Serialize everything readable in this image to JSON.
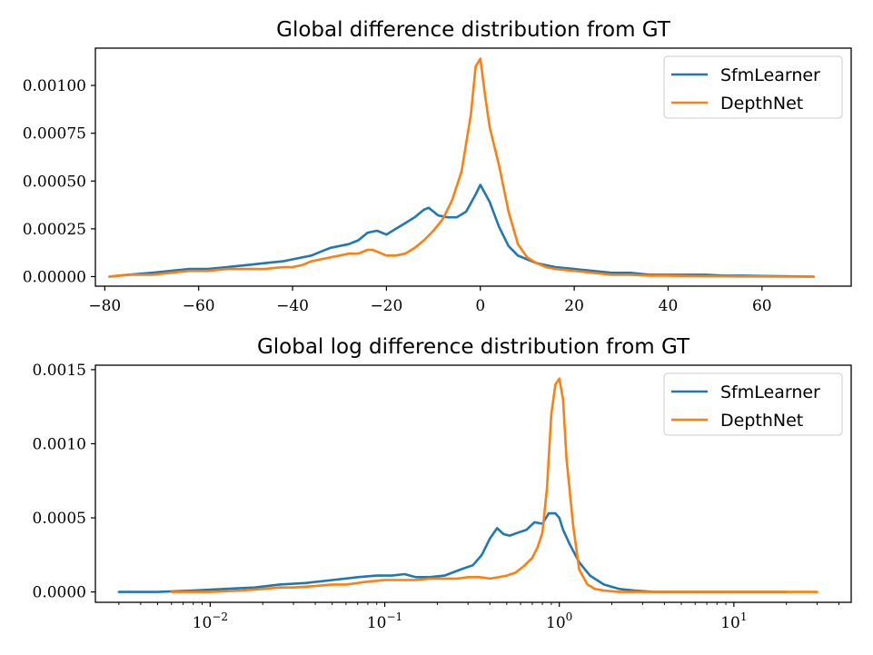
{
  "chart_data": [
    {
      "type": "line",
      "title": "Global difference distribution from GT",
      "xlabel": "",
      "ylabel": "",
      "xscale": "linear",
      "xlim": [
        -82,
        79
      ],
      "ylim": [
        -5e-05,
        0.001195
      ],
      "xticks": [
        -80,
        -60,
        -40,
        -20,
        0,
        20,
        40,
        60
      ],
      "xtick_labels": [
        "−80",
        "−60",
        "−40",
        "−20",
        "0",
        "20",
        "40",
        "60"
      ],
      "yticks": [
        0,
        0.00025,
        0.0005,
        0.00075,
        0.001
      ],
      "ytick_labels": [
        "0.00000",
        "0.00025",
        "0.00050",
        "0.00075",
        "0.00100"
      ],
      "legend": {
        "position": "top-right",
        "entries": [
          "SfmLearner",
          "DepthNet"
        ]
      },
      "series": [
        {
          "name": "SfmLearner",
          "color": "#1f77b4",
          "x": [
            -79,
            -75,
            -70,
            -66,
            -62,
            -58,
            -54,
            -50,
            -46,
            -42,
            -40,
            -38,
            -36,
            -34,
            -32,
            -30,
            -28,
            -26,
            -24,
            -22,
            -20,
            -18,
            -16,
            -14,
            -12,
            -11,
            -10,
            -9,
            -7,
            -5,
            -3,
            -1,
            0,
            2,
            4,
            6,
            8,
            10,
            12,
            14,
            16,
            20,
            24,
            28,
            32,
            36,
            40,
            44,
            48,
            52,
            56,
            60,
            64,
            68,
            71
          ],
          "y": [
            0.0,
            1e-05,
            2e-05,
            3e-05,
            4e-05,
            4e-05,
            5e-05,
            6e-05,
            7e-05,
            8e-05,
            9e-05,
            0.0001,
            0.00011,
            0.00013,
            0.00015,
            0.00016,
            0.00017,
            0.00019,
            0.00023,
            0.00024,
            0.00022,
            0.00025,
            0.00028,
            0.00031,
            0.00035,
            0.00036,
            0.00034,
            0.00032,
            0.00031,
            0.00031,
            0.00034,
            0.00043,
            0.00048,
            0.00039,
            0.00026,
            0.00016,
            0.00011,
            9e-05,
            7e-05,
            6e-05,
            5e-05,
            4e-05,
            3e-05,
            2e-05,
            2e-05,
            1e-05,
            1e-05,
            1e-05,
            1e-05,
            5e-06,
            5e-06,
            3e-06,
            2e-06,
            1e-06,
            0.0
          ]
        },
        {
          "name": "DepthNet",
          "color": "#ff7f0e",
          "x": [
            -79,
            -75,
            -70,
            -66,
            -62,
            -58,
            -54,
            -50,
            -46,
            -42,
            -40,
            -38,
            -36,
            -34,
            -32,
            -30,
            -28,
            -26,
            -24,
            -23,
            -22,
            -20,
            -18,
            -16,
            -14,
            -12,
            -10,
            -8,
            -6,
            -4,
            -2,
            -1,
            0,
            1,
            2,
            4,
            6,
            8,
            10,
            12,
            14,
            16,
            20,
            24,
            28,
            32,
            36,
            40,
            44,
            48,
            52,
            56,
            60,
            64,
            68,
            71
          ],
          "y": [
            0.0,
            1e-05,
            1e-05,
            2e-05,
            3e-05,
            3e-05,
            4e-05,
            4e-05,
            4e-05,
            5e-05,
            5e-05,
            6e-05,
            8e-05,
            9e-05,
            0.0001,
            0.00011,
            0.00012,
            0.00012,
            0.00014,
            0.00014,
            0.00013,
            0.00011,
            0.00011,
            0.00012,
            0.00015,
            0.00019,
            0.00024,
            0.0003,
            0.0004,
            0.00055,
            0.00085,
            0.0011,
            0.00114,
            0.00095,
            0.00078,
            0.00058,
            0.00034,
            0.00017,
            0.0001,
            7e-05,
            5e-05,
            4e-05,
            3e-05,
            2e-05,
            1e-05,
            1e-05,
            5e-06,
            5e-06,
            3e-06,
            2e-06,
            2e-06,
            1e-06,
            1e-06,
            0.0,
            0.0,
            0.0
          ]
        }
      ]
    },
    {
      "type": "line",
      "title": "Global log difference distribution from GT",
      "xlabel": "",
      "ylabel": "",
      "xscale": "log",
      "xlim": [
        0.0022,
        47
      ],
      "ylim": [
        -7e-05,
        0.00153
      ],
      "xticks": [
        0.01,
        0.1,
        1,
        10
      ],
      "xtick_labels": [
        {
          "base": "10",
          "exp": "−2"
        },
        {
          "base": "10",
          "exp": "−1"
        },
        {
          "base": "10",
          "exp": "0"
        },
        {
          "base": "10",
          "exp": "1"
        }
      ],
      "yticks": [
        0,
        0.0005,
        0.001,
        0.0015
      ],
      "ytick_labels": [
        "0.0000",
        "0.0005",
        "0.0010",
        "0.0015"
      ],
      "legend": {
        "position": "top-right",
        "entries": [
          "SfmLearner",
          "DepthNet"
        ]
      },
      "series": [
        {
          "name": "SfmLearner",
          "color": "#1f77b4",
          "x": [
            0.003,
            0.005,
            0.008,
            0.012,
            0.018,
            0.025,
            0.035,
            0.05,
            0.07,
            0.09,
            0.11,
            0.13,
            0.15,
            0.18,
            0.22,
            0.27,
            0.32,
            0.36,
            0.4,
            0.44,
            0.48,
            0.52,
            0.58,
            0.65,
            0.72,
            0.8,
            0.87,
            0.95,
            1.0,
            1.05,
            1.15,
            1.3,
            1.5,
            1.8,
            2.2,
            2.7,
            3.5,
            5,
            8,
            12,
            20
          ],
          "y": [
            0.0,
            0.0,
            1e-05,
            2e-05,
            3e-05,
            5e-05,
            6e-05,
            8e-05,
            0.0001,
            0.00011,
            0.00011,
            0.00012,
            0.0001,
            0.0001,
            0.00011,
            0.00015,
            0.00018,
            0.00025,
            0.00036,
            0.00043,
            0.00039,
            0.00038,
            0.0004,
            0.00042,
            0.00047,
            0.00046,
            0.00053,
            0.00053,
            0.0005,
            0.00042,
            0.00032,
            0.0002,
            0.00011,
            5e-05,
            2e-05,
            1e-05,
            0.0,
            0.0,
            0.0,
            0.0,
            0.0
          ]
        },
        {
          "name": "DepthNet",
          "color": "#ff7f0e",
          "x": [
            0.006,
            0.01,
            0.015,
            0.02,
            0.025,
            0.03,
            0.04,
            0.05,
            0.06,
            0.08,
            0.1,
            0.12,
            0.15,
            0.18,
            0.22,
            0.26,
            0.3,
            0.35,
            0.4,
            0.45,
            0.5,
            0.56,
            0.62,
            0.7,
            0.75,
            0.8,
            0.85,
            0.9,
            0.95,
            1.0,
            1.05,
            1.1,
            1.2,
            1.3,
            1.45,
            1.6,
            1.8,
            2.2,
            3,
            5,
            10,
            20,
            30
          ],
          "y": [
            0.0,
            0.0,
            1e-05,
            2e-05,
            3e-05,
            3e-05,
            4e-05,
            5e-05,
            5e-05,
            7e-05,
            8e-05,
            8e-05,
            8e-05,
            9e-05,
            9e-05,
            9e-05,
            0.0001,
            0.0001,
            9e-05,
            0.0001,
            0.00011,
            0.00013,
            0.00017,
            0.00023,
            0.0003,
            0.0004,
            0.0007,
            0.0012,
            0.0014,
            0.00144,
            0.0013,
            0.0009,
            0.00045,
            0.00015,
            5e-05,
            2e-05,
            1e-05,
            0.0,
            0.0,
            0.0,
            0.0,
            0.0,
            0.0
          ]
        }
      ]
    }
  ]
}
